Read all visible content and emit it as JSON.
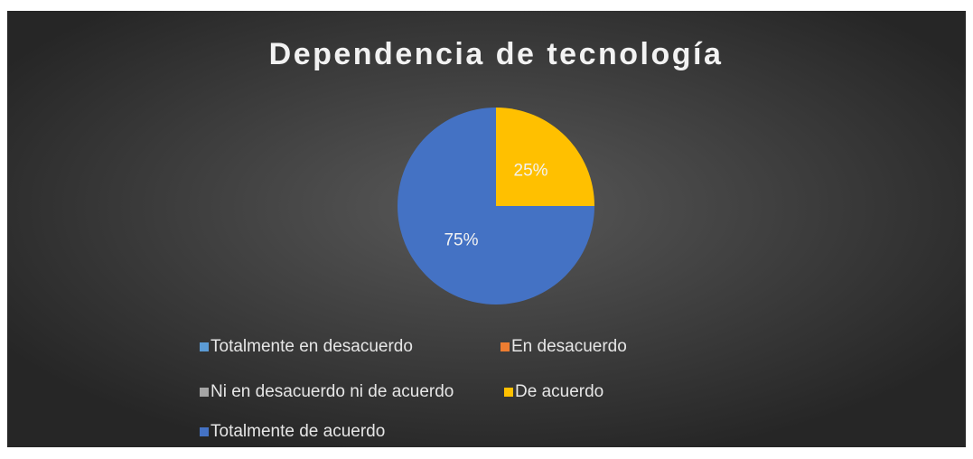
{
  "chart_data": {
    "type": "pie",
    "title": "Dependencia de tecnología",
    "categories": [
      "Totalmente en desacuerdo",
      "En desacuerdo",
      "Ni en desacuerdo ni de acuerdo",
      "De acuerdo",
      "Totalmente de acuerdo"
    ],
    "values": [
      0,
      0,
      0,
      25,
      75
    ],
    "value_labels": [
      null,
      null,
      null,
      "25%",
      "75%"
    ],
    "colors": [
      "#5b9bd5",
      "#ed7d31",
      "#a5a5a5",
      "#ffc000",
      "#4472c4"
    ],
    "legend": "bottom"
  }
}
